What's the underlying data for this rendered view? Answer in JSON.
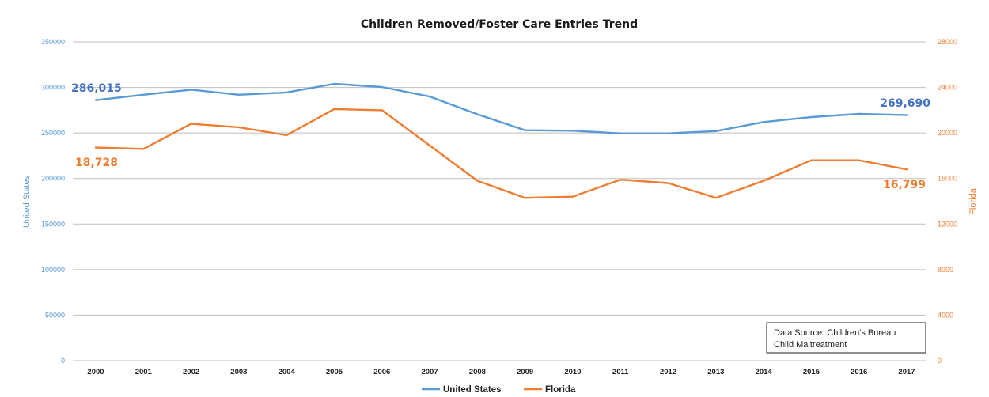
{
  "chart_data": {
    "type": "line",
    "title": "Children Removed/Foster Care Entries Trend",
    "x": [
      "2000",
      "2001",
      "2002",
      "2003",
      "2004",
      "2005",
      "2006",
      "2007",
      "2008",
      "2009",
      "2010",
      "2011",
      "2012",
      "2013",
      "2014",
      "2015",
      "2016",
      "2017"
    ],
    "series": [
      {
        "name": "United States",
        "axis": "left",
        "color": "#5b9bd5",
        "values": [
          286015,
          292000,
          297500,
          292000,
          294500,
          304000,
          300500,
          290000,
          270500,
          253000,
          252500,
          249500,
          249500,
          252000,
          262000,
          267500,
          271000,
          269690
        ]
      },
      {
        "name": "Florida",
        "axis": "right",
        "color": "#ed7d31",
        "values": [
          18728,
          18600,
          20800,
          20500,
          19800,
          22100,
          22000,
          18900,
          15800,
          14300,
          14400,
          15900,
          15600,
          14300,
          15800,
          17600,
          17600,
          16799
        ]
      }
    ],
    "y_left": {
      "label": "United States",
      "min": 0,
      "max": 350000,
      "ticks": [
        "0",
        "50000",
        "100000",
        "150000",
        "200000",
        "250000",
        "300000",
        "350000"
      ]
    },
    "y_right": {
      "label": "Florida",
      "min": 0,
      "max": 28000,
      "ticks": [
        "0",
        "4000",
        "8000",
        "12000",
        "16000",
        "20000",
        "24000",
        "28000"
      ]
    },
    "grid": true,
    "legend_position": "bottom",
    "annotations": {
      "us_first": "286,015",
      "us_last": "269,690",
      "fl_first": "18,728",
      "fl_last": "16,799"
    },
    "source_box": {
      "line1": "Data Source: Children's Bureau",
      "line2": "Child Maltreatment"
    },
    "colors": {
      "us": "#5b9bd5",
      "fl": "#ed7d31",
      "us_label": "#4472c4",
      "grid": "#bfbfbf",
      "axis_left": "#5b9bd5",
      "axis_right": "#ed7d31"
    }
  }
}
